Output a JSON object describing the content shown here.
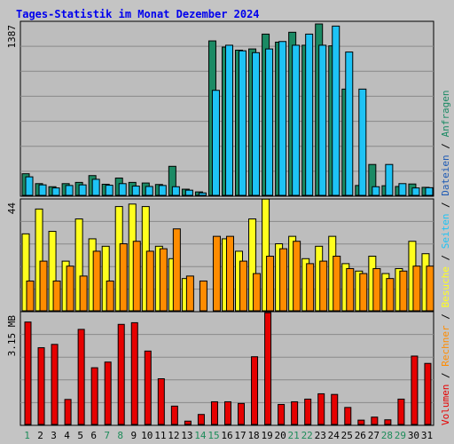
{
  "title": "Tages-Statistik im Monat Dezember 2024",
  "colors": {
    "background": "#c4c4c4",
    "plot_bg": "#bdbdbd",
    "grid": "#8a8a8a",
    "title": "#0000ee",
    "axis_text": "#000000",
    "weekday_day": "#000000",
    "weekend_day": "#1e8c5a",
    "anfragen": "#1b8a64",
    "dateien": "#1e5ab4",
    "seiten": "#1ec3f5",
    "besuche": "#ffff1e",
    "rechner": "#ff8c00",
    "volumen": "#e60000"
  },
  "chart_data": [
    {
      "type": "bar",
      "panel": "top",
      "ylabel": "1387",
      "ylim": [
        0,
        1387
      ],
      "grid": true,
      "legend": [
        {
          "label": "Anfragen",
          "color_key": "anfragen"
        },
        {
          "label": "Dateien",
          "color_key": "dateien"
        },
        {
          "label": "Seiten",
          "color_key": "seiten"
        }
      ],
      "categories": [
        "1",
        "2",
        "3",
        "4",
        "5",
        "6",
        "7",
        "8",
        "9",
        "10",
        "11",
        "12",
        "13",
        "14",
        "15",
        "16",
        "17",
        "18",
        "19",
        "20",
        "21",
        "22",
        "23",
        "24",
        "25",
        "26",
        "27",
        "28",
        "29",
        "30",
        "31"
      ],
      "series": [
        {
          "name": "Anfragen",
          "color_key": "anfragen",
          "values": [
            175,
            95,
            70,
            95,
            105,
            160,
            90,
            140,
            105,
            100,
            88,
            235,
            50,
            28,
            1250,
            1200,
            1175,
            1185,
            1305,
            1240,
            1320,
            1215,
            1387,
            1210,
            860,
            80,
            250,
            78,
            72,
            92,
            65
          ]
        },
        {
          "name": "Seiten",
          "color_key": "seiten",
          "values": [
            150,
            85,
            60,
            80,
            85,
            130,
            82,
            95,
            75,
            72,
            80,
            70,
            42,
            20,
            850,
            1215,
            1170,
            1155,
            1185,
            1245,
            1215,
            1305,
            1215,
            1370,
            1160,
            860,
            70,
            250,
            95,
            60,
            62
          ]
        }
      ]
    },
    {
      "type": "bar",
      "panel": "middle",
      "ylabel": "44",
      "ylim": [
        0,
        44
      ],
      "grid": true,
      "legend": [
        {
          "label": "Besuche",
          "color_key": "besuche"
        },
        {
          "label": "Rechner",
          "color_key": "rechner"
        }
      ],
      "categories": [
        "1",
        "2",
        "3",
        "4",
        "5",
        "6",
        "7",
        "8",
        "9",
        "10",
        "11",
        "12",
        "13",
        "14",
        "15",
        "16",
        "17",
        "18",
        "19",
        "20",
        "21",
        "22",
        "23",
        "24",
        "25",
        "26",
        "27",
        "28",
        "29",
        "30",
        "31"
      ],
      "series": [
        {
          "name": "Besuche",
          "values": [
            31,
            41,
            32,
            20,
            37,
            29,
            26,
            42,
            43,
            42,
            26,
            21,
            13,
            0,
            0,
            29,
            24,
            37,
            45,
            27,
            30,
            21,
            26,
            30,
            19,
            16,
            22,
            15,
            17,
            28,
            23
          ]
        },
        {
          "name": "Rechner",
          "values": [
            12,
            20,
            12,
            18,
            14,
            24,
            12,
            27,
            28,
            24,
            25,
            33,
            14,
            12,
            30,
            30,
            20,
            15,
            22,
            25,
            28,
            19,
            20,
            22,
            17,
            15,
            17,
            13,
            16,
            18,
            18
          ]
        }
      ]
    },
    {
      "type": "bar",
      "panel": "bottom",
      "ylabel": "3.15 MB",
      "ylim": [
        0,
        3.3
      ],
      "grid": true,
      "legend": [
        {
          "label": "Volumen",
          "color_key": "volumen"
        }
      ],
      "categories": [
        "1",
        "2",
        "3",
        "4",
        "5",
        "6",
        "7",
        "8",
        "9",
        "10",
        "11",
        "12",
        "13",
        "14",
        "15",
        "16",
        "17",
        "18",
        "19",
        "20",
        "21",
        "22",
        "23",
        "24",
        "25",
        "26",
        "27",
        "28",
        "29",
        "30",
        "31"
      ],
      "series": [
        {
          "name": "Volumen",
          "values": [
            3.07,
            2.3,
            2.4,
            0.75,
            2.85,
            1.7,
            1.87,
            3.0,
            3.05,
            2.2,
            1.37,
            0.55,
            0.1,
            0.3,
            0.68,
            0.68,
            0.63,
            2.03,
            3.35,
            0.6,
            0.68,
            0.76,
            0.92,
            0.9,
            0.51,
            0.13,
            0.22,
            0.14,
            0.76,
            2.05,
            1.83
          ]
        }
      ]
    }
  ],
  "x_axis": {
    "days": [
      "1",
      "2",
      "3",
      "4",
      "5",
      "6",
      "7",
      "8",
      "9",
      "10",
      "11",
      "12",
      "13",
      "14",
      "15",
      "16",
      "17",
      "18",
      "19",
      "20",
      "21",
      "22",
      "23",
      "24",
      "25",
      "26",
      "27",
      "28",
      "29",
      "30",
      "31"
    ],
    "weekend_days": [
      "1",
      "7",
      "8",
      "14",
      "15",
      "21",
      "22",
      "28",
      "29"
    ]
  },
  "side_legend": {
    "top": [
      {
        "label": "Anfragen",
        "color_key": "anfragen"
      },
      {
        "label": "/",
        "color_key": "axis_text"
      },
      {
        "label": "Dateien",
        "color_key": "dateien"
      },
      {
        "label": "/",
        "color_key": "axis_text"
      },
      {
        "label": "Seiten",
        "color_key": "seiten"
      },
      {
        "label": "/",
        "color_key": "axis_text"
      },
      {
        "label": "Besuche",
        "color_key": "besuche"
      },
      {
        "label": "/",
        "color_key": "axis_text"
      },
      {
        "label": "Rechner",
        "color_key": "rechner"
      },
      {
        "label": "/",
        "color_key": "axis_text"
      },
      {
        "label": "Volumen",
        "color_key": "volumen"
      }
    ]
  }
}
